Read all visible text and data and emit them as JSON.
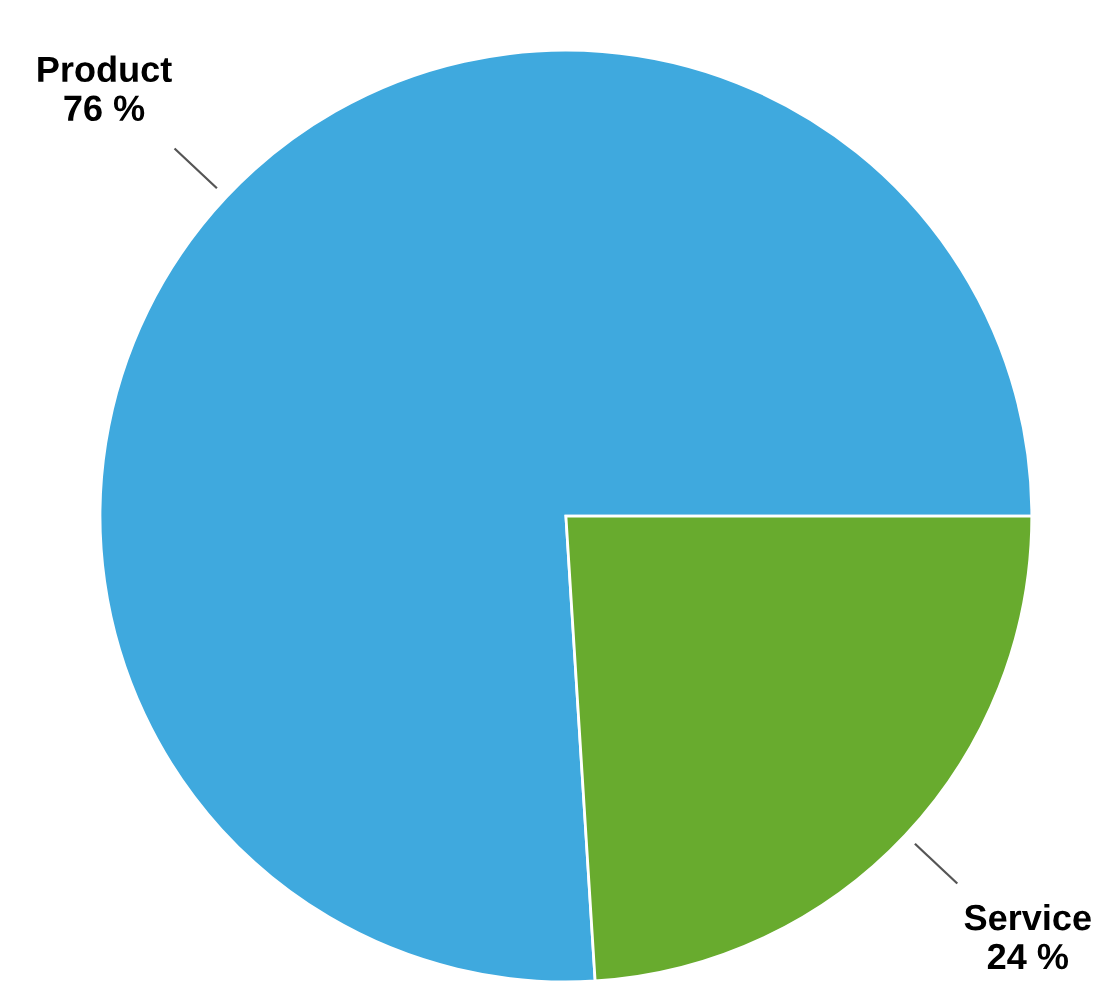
{
  "chart_data": {
    "type": "pie",
    "categories": [
      "Product",
      "Service"
    ],
    "values": [
      76,
      24
    ],
    "value_labels": [
      "76 %",
      "24 %"
    ],
    "colors": [
      "#3fa9de",
      "#68ab2e"
    ]
  }
}
